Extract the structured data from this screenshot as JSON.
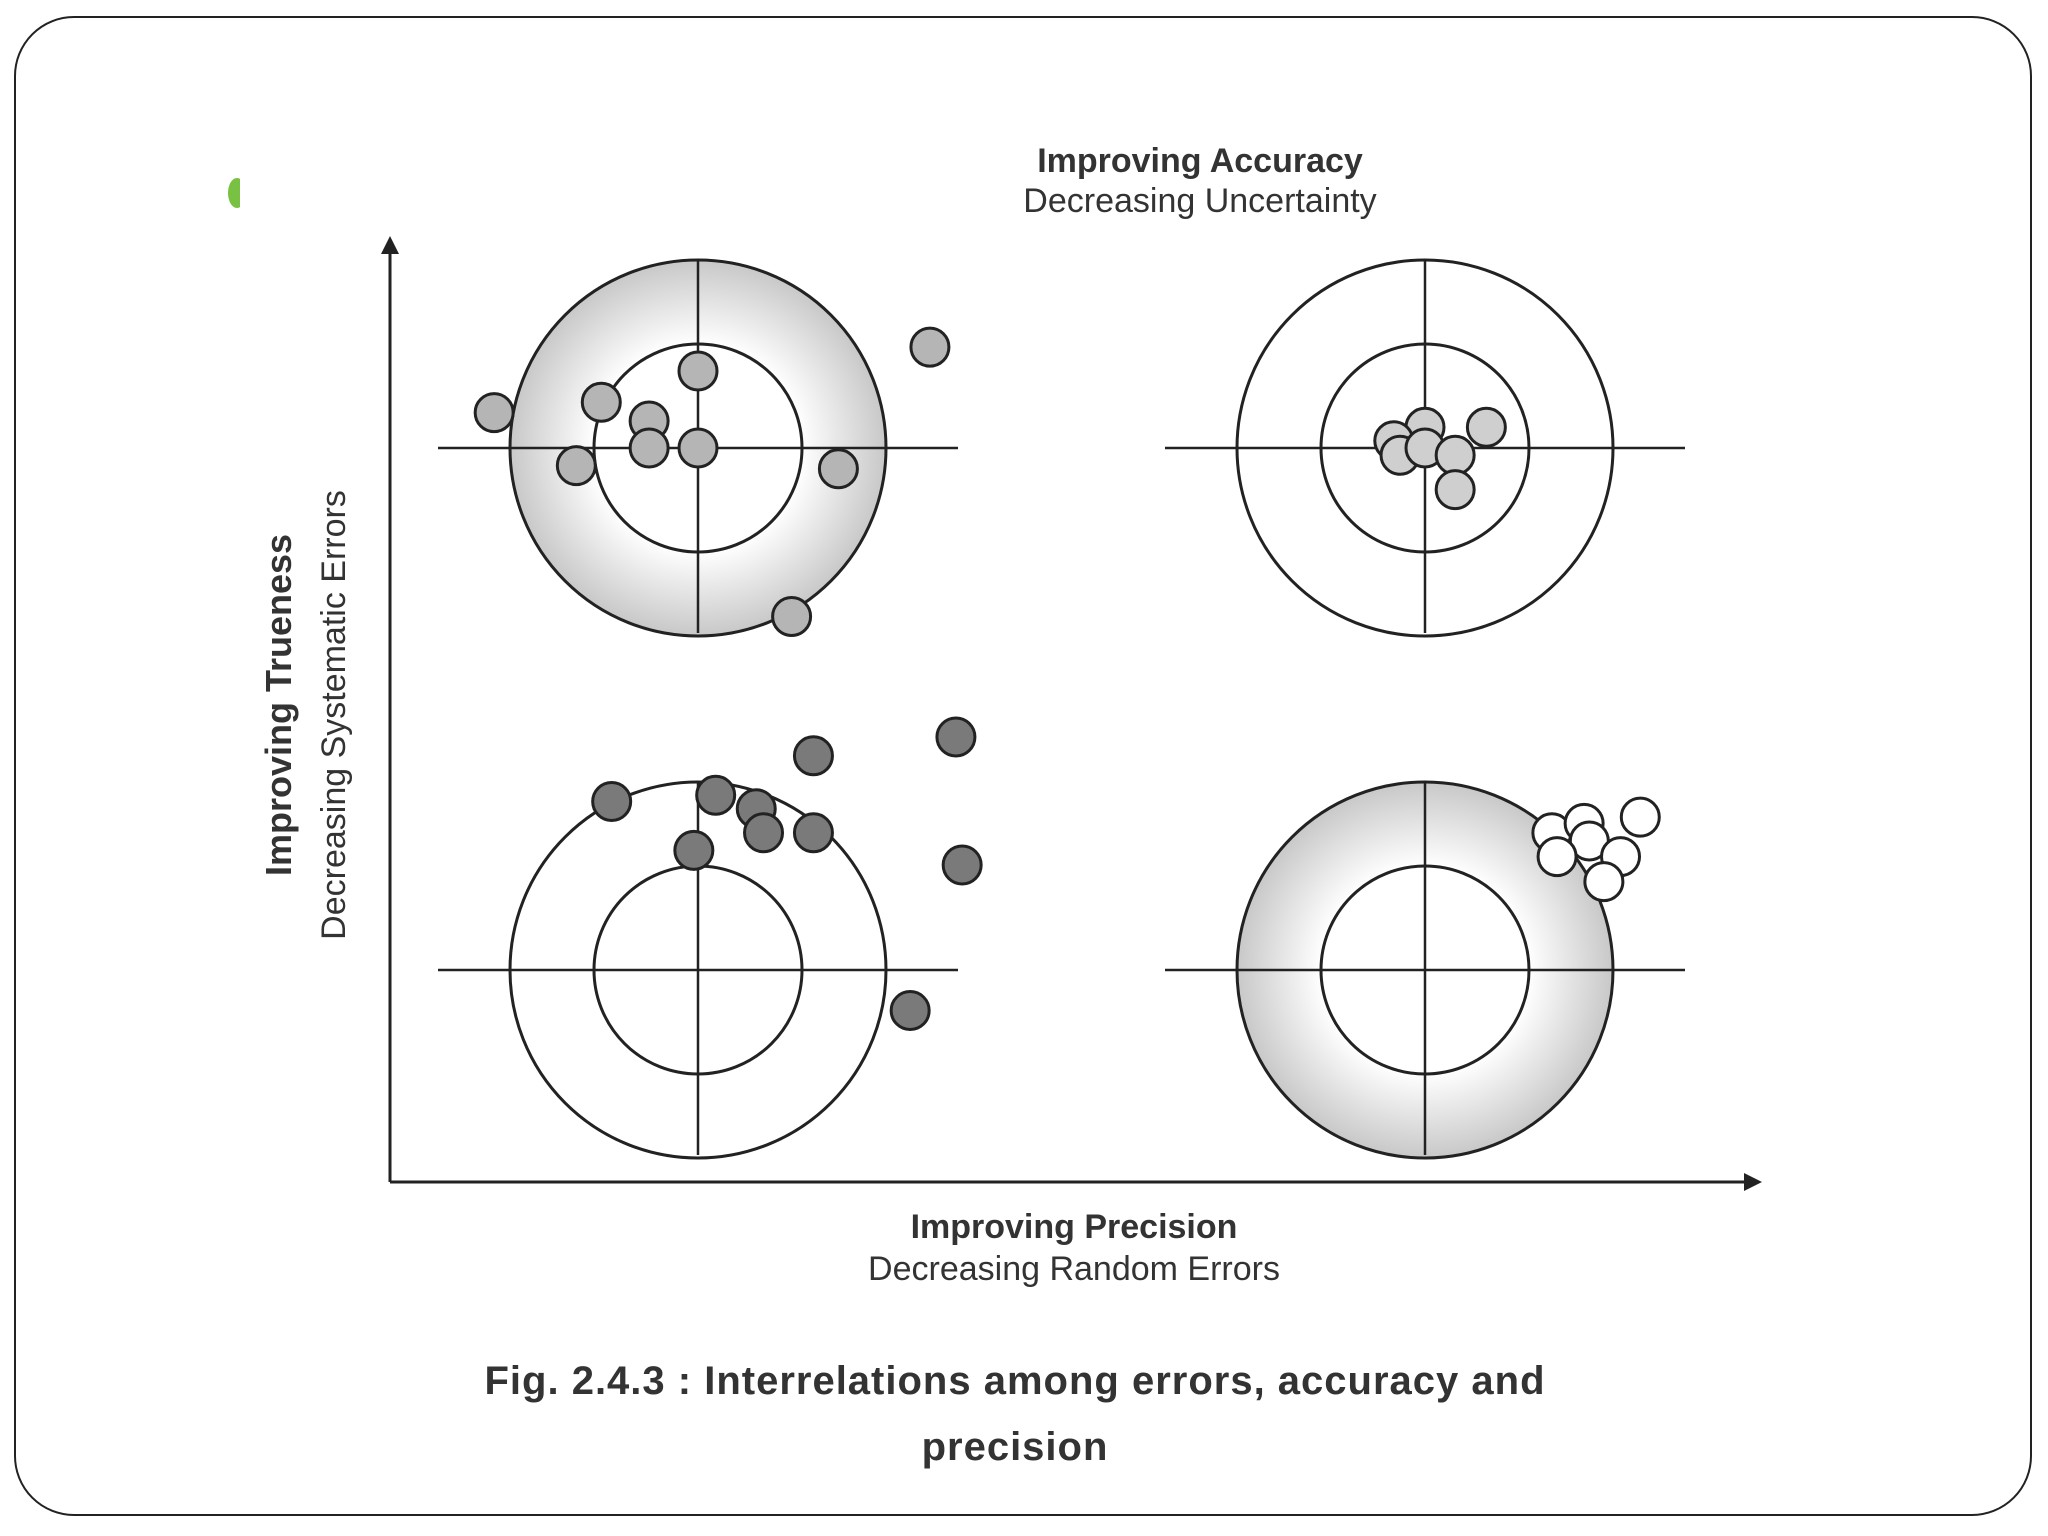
{
  "diagram": {
    "top_label": {
      "title": "Improving Accuracy",
      "subtitle": "Decreasing Uncertainty"
    },
    "x_axis": {
      "title": "Improving Precision",
      "subtitle": "Decreasing Random Errors"
    },
    "y_axis": {
      "title": "Improving Trueness",
      "subtitle": "Decreasing Systematic Errors"
    },
    "targets": [
      {
        "position": "top-left",
        "ring_shaded": true,
        "point_fill": "#b5b5b5",
        "points": [
          [
            -1.96,
            0.34
          ],
          [
            -0.93,
            0.44
          ],
          [
            -0.47,
            0.26
          ],
          [
            0.0,
            0.74
          ],
          [
            -0.47,
            0.0
          ],
          [
            0.0,
            0.0
          ],
          [
            -1.17,
            -0.17
          ],
          [
            1.35,
            -0.2
          ],
          [
            2.23,
            0.97
          ],
          [
            0.9,
            -1.62
          ]
        ]
      },
      {
        "position": "top-right",
        "ring_shaded": false,
        "point_fill": "#cfcfcf",
        "points": [
          [
            0.0,
            0.2
          ],
          [
            0.59,
            0.2
          ],
          [
            -0.3,
            0.07
          ],
          [
            -0.24,
            -0.07
          ],
          [
            0.0,
            0.0
          ],
          [
            0.29,
            -0.07
          ],
          [
            0.29,
            -0.4
          ]
        ]
      },
      {
        "position": "bottom-left",
        "ring_shaded": false,
        "point_fill": "#7a7a7a",
        "points": [
          [
            -0.83,
            1.62
          ],
          [
            0.17,
            1.68
          ],
          [
            0.56,
            1.55
          ],
          [
            1.11,
            2.06
          ],
          [
            0.63,
            1.32
          ],
          [
            1.11,
            1.32
          ],
          [
            -0.04,
            1.15
          ],
          [
            2.48,
            2.24
          ],
          [
            2.54,
            1.01
          ],
          [
            2.04,
            -0.39
          ]
        ]
      },
      {
        "position": "bottom-right",
        "ring_shaded": true,
        "point_fill": "#ffffff",
        "points": [
          [
            1.22,
            1.32
          ],
          [
            1.53,
            1.41
          ],
          [
            2.07,
            1.47
          ],
          [
            1.58,
            1.24
          ],
          [
            1.27,
            1.09
          ],
          [
            1.88,
            1.09
          ],
          [
            1.72,
            0.85
          ]
        ]
      }
    ],
    "colors": {
      "line": "#222222",
      "ring_shade": "#c8c8c8",
      "text": "#333333",
      "bullet_accent": "#79c142"
    }
  },
  "caption": {
    "line1": "Fig. 2.4.3 :  Interrelations among errors, accuracy and",
    "line2": "precision"
  }
}
